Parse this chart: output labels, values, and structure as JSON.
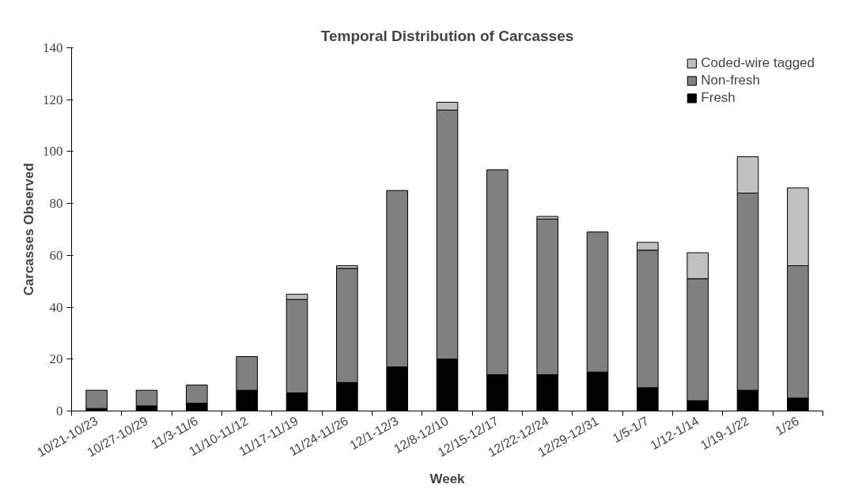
{
  "chart_data": {
    "type": "bar",
    "title": "Temporal Distribution of Carcasses",
    "xlabel": "Week",
    "ylabel": "Carcasses Observed",
    "categories": [
      "10/21-10/23",
      "10/27-10/29",
      "11/3-11/6",
      "11/10-11/12",
      "11/17-11/19",
      "11/24-11/26",
      "12/1-12/3",
      "12/8-12/10",
      "12/15-12/17",
      "12/22-12/24",
      "12/29-12/31",
      "1/5-1/7",
      "1/12-1/14",
      "1/19-1/22",
      "1/26"
    ],
    "stacked": true,
    "ylim": [
      0,
      140
    ],
    "yticks": [
      0,
      20,
      40,
      60,
      80,
      100,
      120,
      140
    ],
    "grid": false,
    "legend": "top right",
    "series": [
      {
        "name": "Fresh",
        "color": "#000000",
        "values": [
          1,
          2,
          3,
          8,
          7,
          11,
          17,
          20,
          14,
          14,
          15,
          9,
          4,
          8,
          5
        ]
      },
      {
        "name": "Non-fresh",
        "color": "#808080",
        "values": [
          7,
          6,
          7,
          13,
          36,
          44,
          68,
          96,
          79,
          60,
          54,
          53,
          47,
          76,
          51
        ]
      },
      {
        "name": "Coded-wire tagged",
        "color": "#c0c0c0",
        "values": [
          0,
          0,
          0,
          0,
          2,
          1,
          0,
          3,
          0,
          1,
          0,
          3,
          10,
          14,
          30
        ]
      }
    ]
  }
}
